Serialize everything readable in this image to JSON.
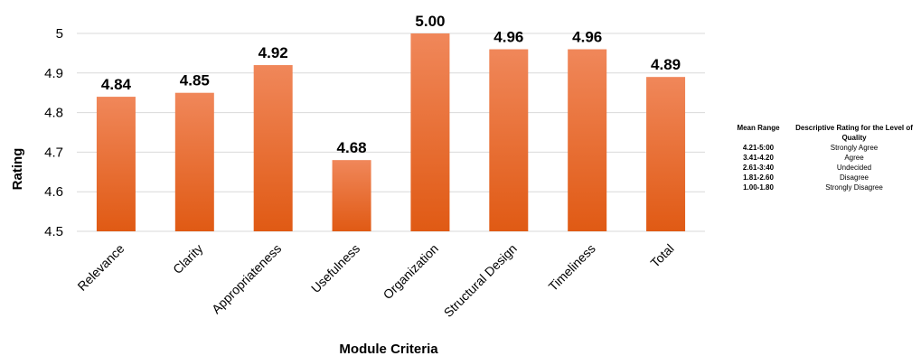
{
  "chart_data": {
    "type": "bar",
    "categories": [
      "Relevance",
      "Clarity",
      "Appropriateness",
      "Usefulness",
      "Organization",
      "Structural Design",
      "Timeliness",
      "Total"
    ],
    "values": [
      4.84,
      4.85,
      4.92,
      4.68,
      5.0,
      4.96,
      4.96,
      4.89
    ],
    "data_labels": [
      "4.84",
      "4.85",
      "4.92",
      "4.68",
      "5.00",
      "4.96",
      "4.96",
      "4.89"
    ],
    "xlabel": "Module Criteria",
    "ylabel": "Rating",
    "ylim": [
      4.5,
      5.0
    ],
    "yticks": [
      "4.5",
      "4.6",
      "4.7",
      "4.8",
      "4.9",
      "5"
    ],
    "ytick_values": [
      4.5,
      4.6,
      4.7,
      4.8,
      4.9,
      5.0
    ],
    "grid": true,
    "bar_color_top": "#f0875a",
    "bar_color_bottom": "#e05a14"
  },
  "legend_table": {
    "header_col1": "Mean Range",
    "header_col2": "Descriptive Rating for the Level of Quality",
    "rows": [
      {
        "range": "4.21-5:00",
        "rating": "Strongly Agree"
      },
      {
        "range": "3.41-4.20",
        "rating": "Agree"
      },
      {
        "range": "2.61-3:40",
        "rating": "Undecided"
      },
      {
        "range": "1.81-2.60",
        "rating": "Disagree"
      },
      {
        "range": "1.00-1.80",
        "rating": "Strongly Disagree"
      }
    ]
  }
}
